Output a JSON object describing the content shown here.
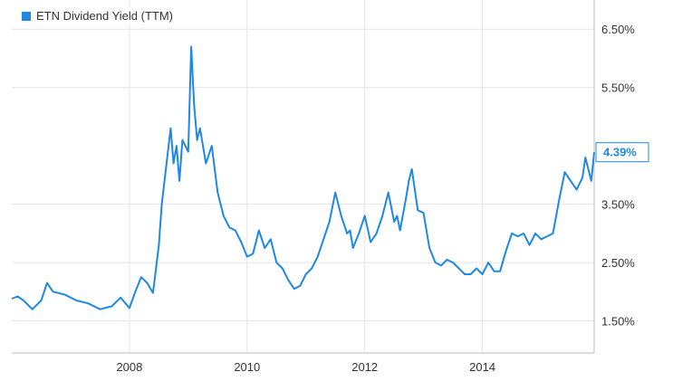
{
  "legend": {
    "label": "ETN Dividend Yield (TTM)",
    "color": "#1e88e5"
  },
  "current_value_label": "4.39%",
  "chart_data": {
    "type": "line",
    "title": "",
    "xlabel": "",
    "ylabel": "",
    "x_tick_labels": [
      "2008",
      "2010",
      "2012",
      "2014"
    ],
    "x_ticks": [
      2008,
      2010,
      2012,
      2014
    ],
    "y_tick_labels": [
      "1.50%",
      "2.50%",
      "3.50%",
      "5.50%",
      "6.50%"
    ],
    "y_ticks": [
      1.5,
      2.5,
      3.5,
      5.5,
      6.5
    ],
    "xlim": [
      2006.0,
      2015.9
    ],
    "ylim": [
      0.95,
      7.0
    ],
    "grid": true,
    "legend_position": "top-left",
    "series": [
      {
        "name": "ETN Dividend Yield (TTM)",
        "color": "#1e88e5",
        "x": [
          2006.0,
          2006.1,
          2006.2,
          2006.35,
          2006.5,
          2006.6,
          2006.7,
          2006.9,
          2007.1,
          2007.3,
          2007.5,
          2007.7,
          2007.85,
          2008.0,
          2008.1,
          2008.2,
          2008.3,
          2008.4,
          2008.5,
          2008.55,
          2008.7,
          2008.75,
          2008.8,
          2008.85,
          2008.9,
          2009.0,
          2009.05,
          2009.1,
          2009.15,
          2009.2,
          2009.3,
          2009.4,
          2009.5,
          2009.6,
          2009.7,
          2009.8,
          2009.9,
          2010.0,
          2010.1,
          2010.2,
          2010.3,
          2010.4,
          2010.5,
          2010.6,
          2010.7,
          2010.8,
          2010.9,
          2011.0,
          2011.1,
          2011.2,
          2011.3,
          2011.4,
          2011.5,
          2011.6,
          2011.7,
          2011.75,
          2011.8,
          2011.9,
          2012.0,
          2012.1,
          2012.2,
          2012.3,
          2012.4,
          2012.5,
          2012.55,
          2012.6,
          2012.7,
          2012.75,
          2012.8,
          2012.9,
          2013.0,
          2013.1,
          2013.2,
          2013.3,
          2013.4,
          2013.5,
          2013.6,
          2013.7,
          2013.8,
          2013.9,
          2014.0,
          2014.1,
          2014.2,
          2014.3,
          2014.4,
          2014.5,
          2014.6,
          2014.7,
          2014.8,
          2014.9,
          2015.0,
          2015.1,
          2015.2,
          2015.3,
          2015.4,
          2015.5,
          2015.6,
          2015.7,
          2015.75,
          2015.8,
          2015.85,
          2015.9
        ],
        "y": [
          1.88,
          1.92,
          1.85,
          1.7,
          1.85,
          2.15,
          2.0,
          1.95,
          1.85,
          1.8,
          1.7,
          1.75,
          1.9,
          1.72,
          2.0,
          2.25,
          2.15,
          1.98,
          2.8,
          3.5,
          4.8,
          4.2,
          4.5,
          3.9,
          4.6,
          4.4,
          6.2,
          5.2,
          4.6,
          4.8,
          4.2,
          4.5,
          3.7,
          3.3,
          3.1,
          3.05,
          2.85,
          2.6,
          2.65,
          3.05,
          2.75,
          2.9,
          2.5,
          2.4,
          2.2,
          2.05,
          2.1,
          2.3,
          2.4,
          2.6,
          2.9,
          3.2,
          3.7,
          3.3,
          3.0,
          3.05,
          2.75,
          3.0,
          3.3,
          2.85,
          3.0,
          3.3,
          3.7,
          3.2,
          3.3,
          3.05,
          3.6,
          3.9,
          4.1,
          3.4,
          3.35,
          2.75,
          2.5,
          2.45,
          2.55,
          2.5,
          2.4,
          2.3,
          2.3,
          2.4,
          2.3,
          2.5,
          2.35,
          2.35,
          2.7,
          3.0,
          2.95,
          3.0,
          2.8,
          3.0,
          2.9,
          2.95,
          3.0,
          3.55,
          4.05,
          3.9,
          3.75,
          3.95,
          4.3,
          4.1,
          3.9,
          4.39
        ]
      }
    ]
  }
}
